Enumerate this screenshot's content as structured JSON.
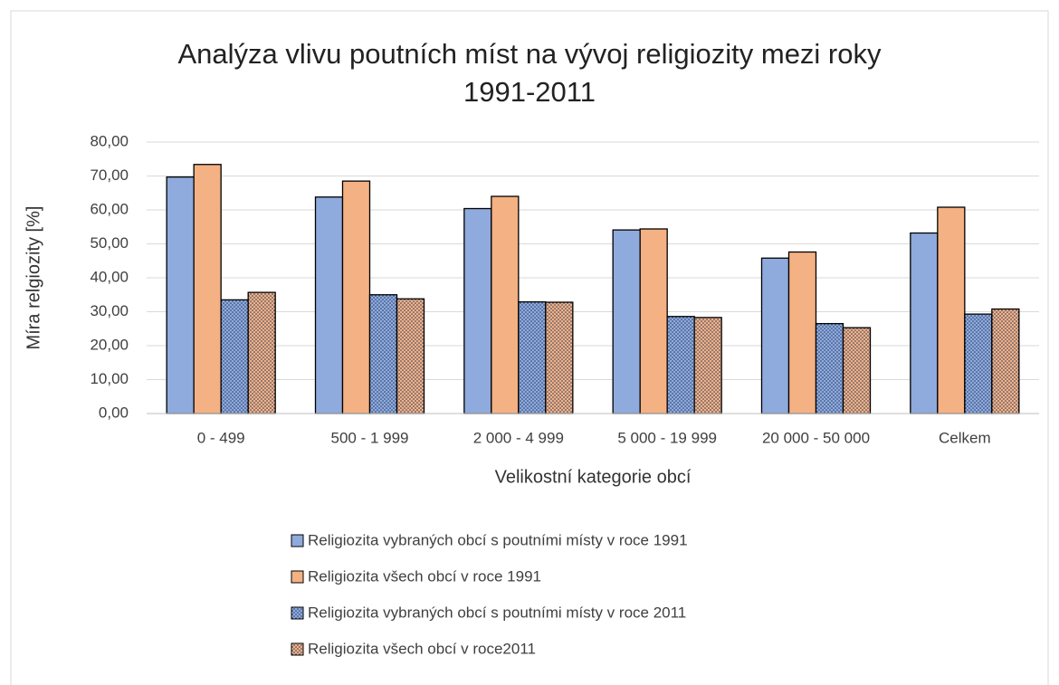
{
  "chart_data": {
    "type": "bar",
    "title": [
      "Analýza vlivu poutních míst na vývoj religiozity mezi roky",
      "1991-2011"
    ],
    "x_label": "Velikostní kategorie obcí",
    "y_label": "Míra relgiozity [%]",
    "categories": [
      "0 - 499",
      "500 - 1 999",
      "2 000 - 4 999",
      "5 000 - 19 999",
      "20 000 - 50 000",
      "Celkem"
    ],
    "series": [
      {
        "name": "Religiozita vybraných obcí s poutními místy v roce 1991",
        "color": "#8faadc",
        "pattern": "solid",
        "values": [
          69.7,
          63.8,
          60.4,
          54.1,
          45.8,
          53.2
        ]
      },
      {
        "name": "Religiozita všech obcí v roce 1991",
        "color": "#f4b183",
        "pattern": "solid",
        "values": [
          73.4,
          68.5,
          64.0,
          54.4,
          47.6,
          60.8
        ]
      },
      {
        "name": "Religiozita vybraných obcí s poutními místy v roce 2011",
        "color": "#8faadc",
        "pattern": "dots",
        "values": [
          33.5,
          35.0,
          32.9,
          28.6,
          26.5,
          29.3
        ]
      },
      {
        "name": "Religiozita všech obcí v roce2011",
        "color": "#f4b183",
        "pattern": "dots",
        "values": [
          35.7,
          33.8,
          32.8,
          28.3,
          25.3,
          30.8
        ]
      }
    ],
    "ylim": [
      0,
      80
    ],
    "yticks": [
      {
        "value": 0,
        "label": "0,00"
      },
      {
        "value": 10,
        "label": "10,00"
      },
      {
        "value": 20,
        "label": "20,00"
      },
      {
        "value": 30,
        "label": "30,00"
      },
      {
        "value": 40,
        "label": "40,00"
      },
      {
        "value": 50,
        "label": "50,00"
      },
      {
        "value": 60,
        "label": "60,00"
      },
      {
        "value": 70,
        "label": "70,00"
      },
      {
        "value": 80,
        "label": "80,00"
      }
    ],
    "grid": true,
    "legend": "bottom"
  }
}
